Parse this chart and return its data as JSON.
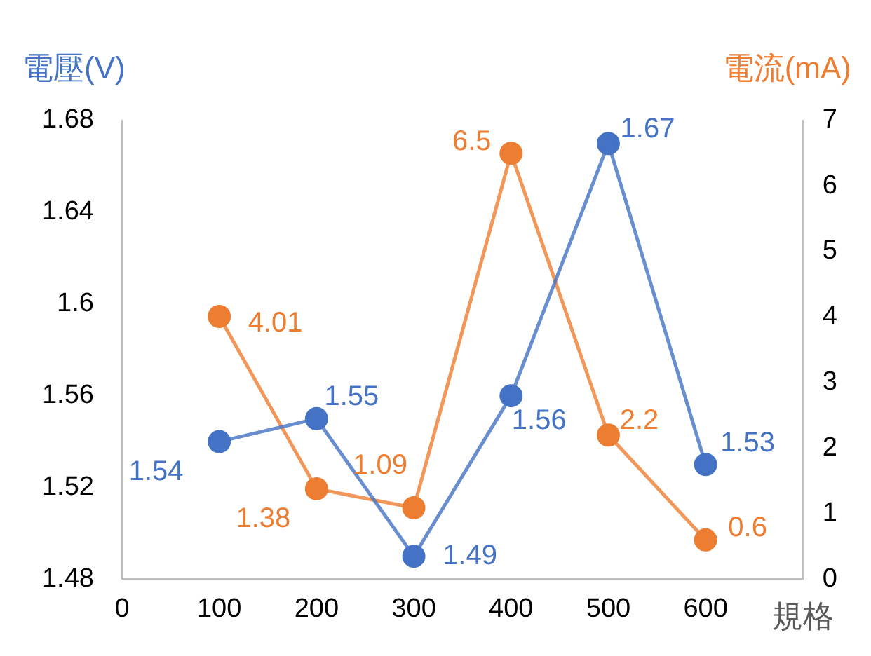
{
  "chart_data": {
    "type": "line",
    "xlabel": "規格",
    "ylabel": "電壓(V)",
    "y2label": "電流(mA)",
    "x": [
      100,
      200,
      300,
      400,
      500,
      600
    ],
    "series": [
      {
        "color": "#4472c4",
        "values": [
          1.54,
          1.55,
          1.49,
          1.56,
          1.67,
          1.53
        ]
      },
      {
        "color": "#ed7d31",
        "axis": "y2",
        "values": [
          4.01,
          1.38,
          1.09,
          6.5,
          2.2,
          0.6
        ]
      }
    ],
    "xlim": [
      0,
      700
    ],
    "xticks": [
      0,
      100,
      200,
      300,
      400,
      500,
      600
    ],
    "ylim": [
      1.48,
      1.68
    ],
    "yticks": [
      1.48,
      1.52,
      1.56,
      1.6,
      1.64,
      1.68
    ],
    "y2lim": [
      0,
      7
    ],
    "y2ticks": [
      0,
      1,
      2,
      3,
      4,
      5,
      6,
      7
    ],
    "grid": false,
    "legend": false,
    "marker": "circle",
    "line_style": "solid",
    "data_labels": true
  }
}
